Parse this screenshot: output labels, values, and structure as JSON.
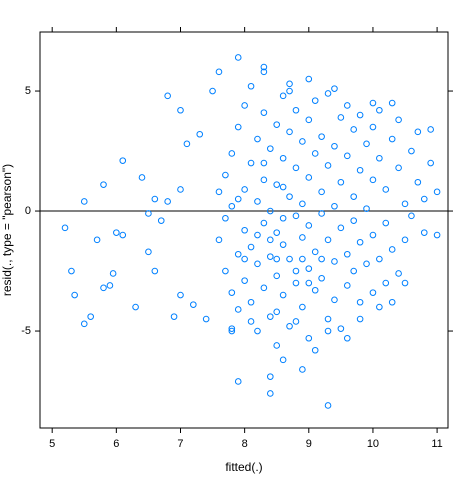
{
  "chart_data": {
    "type": "scatter",
    "xlabel": "fitted(.)",
    "ylabel": "resid(., type = \"pearson\")",
    "color": "#0080ff",
    "hline": 0,
    "xlim": [
      4.81,
      11.17
    ],
    "xticks": [
      5,
      6,
      7,
      8,
      9,
      10,
      11
    ],
    "ylim": [
      -9.04,
      7.46
    ],
    "yticks": [
      -5,
      0,
      5
    ],
    "x": [
      5.2,
      5.3,
      5.35,
      5.5,
      5.5,
      5.6,
      5.7,
      5.8,
      5.8,
      5.9,
      5.95,
      6.0,
      6.1,
      6.1,
      6.3,
      6.4,
      6.5,
      6.5,
      6.6,
      6.6,
      6.7,
      6.8,
      6.8,
      6.9,
      7.0,
      7.0,
      7.0,
      7.1,
      7.2,
      7.3,
      7.4,
      7.5,
      7.6,
      7.8,
      7.6,
      7.6,
      7.7,
      7.7,
      7.7,
      7.8,
      7.8,
      7.8,
      7.9,
      7.9,
      7.9,
      8.0,
      8.0,
      8.0,
      8.0,
      8.1,
      8.1,
      8.1,
      8.1,
      8.2,
      8.2,
      8.2,
      8.2,
      8.3,
      8.3,
      8.3,
      8.3,
      8.3,
      8.4,
      8.4,
      8.4,
      8.4,
      8.5,
      8.5,
      8.5,
      8.5,
      8.5,
      8.6,
      8.6,
      8.6,
      8.6,
      8.7,
      8.7,
      8.7,
      8.7,
      8.7,
      8.8,
      8.8,
      8.8,
      8.8,
      8.9,
      8.9,
      8.9,
      8.9,
      9.0,
      9.0,
      9.0,
      9.0,
      9.0,
      9.1,
      9.1,
      9.1,
      9.1,
      9.2,
      9.2,
      9.2,
      9.2,
      9.3,
      9.3,
      9.3,
      9.3,
      9.4,
      9.4,
      9.4,
      9.4,
      9.5,
      9.5,
      9.5,
      9.5,
      9.6,
      9.6,
      9.6,
      9.6,
      9.7,
      9.7,
      9.7,
      9.7,
      9.8,
      9.8,
      9.8,
      9.8,
      9.9,
      9.9,
      9.9,
      10.0,
      10.0,
      10.0,
      10.0,
      10.1,
      10.1,
      10.1,
      10.2,
      10.2,
      10.2,
      10.3,
      10.3,
      10.4,
      10.4,
      10.4,
      10.5,
      10.5,
      10.6,
      10.6,
      10.7,
      10.7,
      10.8,
      10.8,
      10.9,
      10.9,
      11.0,
      11.0,
      7.9,
      8.0,
      8.2,
      8.4,
      8.5,
      8.6,
      8.8,
      8.9,
      9.0,
      8.3,
      8.6,
      9.2,
      8.1,
      8.5,
      8.8,
      9.1,
      9.3,
      9.6,
      8.6,
      9.8,
      10.1,
      10.3,
      10.5,
      7.8,
      8.9,
      8.4,
      7.9,
      8.4,
      9.3,
      7.9,
      8.3,
      8.7,
      9.4,
      9.0,
      10.0,
      10.3
    ],
    "values": [
      -0.7,
      -2.5,
      -3.5,
      0.4,
      -4.7,
      -4.4,
      -1.2,
      1.1,
      -3.2,
      -3.1,
      -2.6,
      -0.9,
      2.1,
      -1.0,
      -4.0,
      1.4,
      -1.7,
      -0.1,
      0.5,
      -2.5,
      -0.4,
      0.4,
      4.8,
      -4.4,
      4.2,
      0.9,
      -3.5,
      2.8,
      -3.9,
      3.2,
      -4.5,
      5.0,
      5.8,
      -4.9,
      -1.2,
      0.8,
      -2.5,
      1.5,
      -0.3,
      -3.4,
      2.4,
      0.2,
      -1.8,
      3.5,
      -4.1,
      0.9,
      -2.9,
      4.4,
      -0.8,
      2.0,
      -3.8,
      -1.5,
      5.2,
      0.4,
      -2.2,
      3.0,
      -5.0,
      1.3,
      -0.5,
      -3.2,
      4.1,
      5.8,
      -1.9,
      2.6,
      -4.4,
      0.0,
      3.6,
      -2.7,
      1.1,
      -0.9,
      -5.6,
      4.8,
      -1.4,
      2.2,
      -3.5,
      0.6,
      -2.0,
      3.3,
      -4.8,
      5.3,
      -0.2,
      1.8,
      -3.0,
      4.2,
      -1.1,
      2.9,
      -4.0,
      0.3,
      3.8,
      -2.4,
      1.4,
      -5.3,
      -0.6,
      4.6,
      -1.7,
      2.4,
      -3.3,
      0.8,
      -2.8,
      3.1,
      -0.1,
      -4.5,
      1.9,
      -1.2,
      4.9,
      -3.7,
      2.7,
      0.2,
      -2.1,
      3.9,
      -0.7,
      1.2,
      -4.9,
      -1.8,
      2.3,
      4.4,
      -3.1,
      0.6,
      -2.5,
      3.4,
      -0.4,
      1.7,
      -3.8,
      -1.3,
      4.0,
      2.8,
      -2.2,
      0.1,
      3.5,
      -1.0,
      1.3,
      -3.4,
      4.2,
      -2.0,
      2.2,
      -0.5,
      0.9,
      -3.0,
      3.0,
      -1.6,
      1.8,
      -2.6,
      3.8,
      0.3,
      -1.2,
      2.5,
      -0.2,
      1.2,
      3.3,
      0.5,
      -0.9,
      2.0,
      3.4,
      0.8,
      -1.0,
      0.5,
      -2.0,
      -1.0,
      -1.2,
      -2.0,
      -0.3,
      -2.5,
      -2.0,
      -3.0,
      2.0,
      1.0,
      -2.0,
      -4.6,
      -4.2,
      -4.6,
      -5.8,
      -5.0,
      -5.3,
      -6.2,
      -4.5,
      -4.0,
      -3.8,
      -3.0,
      -5.0,
      -6.6,
      -6.9,
      -7.1,
      -7.6,
      -8.1,
      6.4,
      6.0,
      5.0,
      5.1,
      5.5,
      4.5,
      4.5
    ]
  }
}
